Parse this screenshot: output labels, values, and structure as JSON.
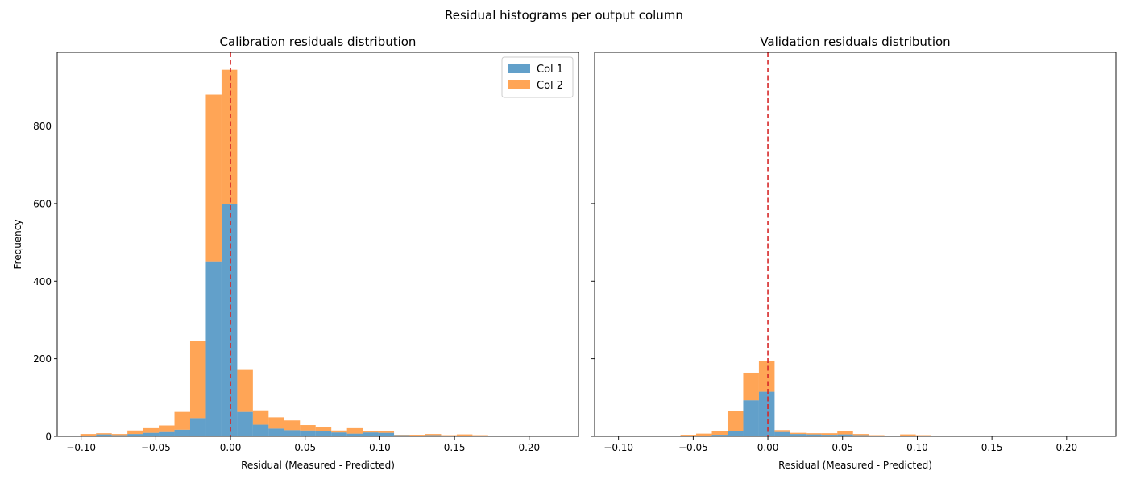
{
  "figure": {
    "suptitle": "Residual histograms per output column",
    "colors": {
      "Col 1": "#1f77b4",
      "Col 2": "#ff7f0e",
      "zero_line": "#d62728",
      "frame": "#000000"
    }
  },
  "chart_data": [
    {
      "type": "bar",
      "subtype": "stacked-histogram",
      "title": "Calibration residuals distribution",
      "xlabel": "Residual (Measured - Predicted)",
      "ylabel": "Frequency",
      "xlim": [
        -0.116,
        0.233
      ],
      "ylim": [
        0,
        990
      ],
      "xticks": [
        -0.1,
        -0.05,
        0.0,
        0.05,
        0.1,
        0.15,
        0.2
      ],
      "xtick_labels": [
        "−0.10",
        "−0.05",
        "0.00",
        "0.05",
        "0.10",
        "0.15",
        "0.20"
      ],
      "yticks": [
        0,
        200,
        400,
        600,
        800
      ],
      "ytick_labels": [
        "0",
        "200",
        "400",
        "600",
        "800"
      ],
      "bin_edges": [
        -0.1005,
        -0.09,
        -0.0795,
        -0.069,
        -0.0585,
        -0.048,
        -0.0375,
        -0.027,
        -0.0165,
        -0.006,
        0.0045,
        0.015,
        0.0255,
        0.036,
        0.0465,
        0.057,
        0.0675,
        0.078,
        0.0885,
        0.099,
        0.1095,
        0.12,
        0.1305,
        0.141,
        0.1515,
        0.162,
        0.1725,
        0.183,
        0.1935,
        0.204,
        0.2145,
        0.225
      ],
      "series": [
        {
          "name": "Col 1",
          "values": [
            2,
            5,
            3,
            6,
            9,
            11,
            17,
            47,
            451,
            598,
            63,
            30,
            20,
            16,
            15,
            13,
            10,
            7,
            10,
            9,
            3,
            1,
            3,
            2,
            1,
            1,
            0,
            1,
            0,
            2,
            1
          ]
        },
        {
          "name": "Col 2",
          "values": [
            4,
            3,
            3,
            9,
            12,
            17,
            46,
            198,
            430,
            347,
            108,
            37,
            29,
            25,
            14,
            11,
            5,
            14,
            4,
            5,
            1,
            3,
            3,
            1,
            4,
            2,
            1,
            1,
            1,
            0,
            0
          ]
        }
      ],
      "vline": {
        "x": 0,
        "style": "dashed"
      },
      "legend": {
        "position": "top-right",
        "entries": [
          "Col 1",
          "Col 2"
        ]
      },
      "grid": false
    },
    {
      "type": "bar",
      "subtype": "stacked-histogram",
      "title": "Validation residuals distribution",
      "xlabel": "Residual (Measured - Predicted)",
      "ylabel": "",
      "xlim": [
        -0.116,
        0.233
      ],
      "ylim": [
        0,
        990
      ],
      "xticks": [
        -0.1,
        -0.05,
        0.0,
        0.05,
        0.1,
        0.15,
        0.2
      ],
      "xtick_labels": [
        "−0.10",
        "−0.05",
        "0.00",
        "0.05",
        "0.10",
        "0.15",
        "0.20"
      ],
      "yticks": [
        0,
        200,
        400,
        600,
        800
      ],
      "ytick_labels": [],
      "bin_edges": [
        -0.1005,
        -0.09,
        -0.0795,
        -0.069,
        -0.0585,
        -0.048,
        -0.0375,
        -0.027,
        -0.0165,
        -0.006,
        0.0045,
        0.015,
        0.0255,
        0.036,
        0.0465,
        0.057,
        0.0675,
        0.078,
        0.0885,
        0.099,
        0.1095,
        0.12,
        0.1305,
        0.141,
        0.1515,
        0.162,
        0.1725,
        0.183,
        0.1935,
        0.204,
        0.2145,
        0.225
      ],
      "series": [
        {
          "name": "Col 1",
          "values": [
            1,
            1,
            0,
            1,
            1,
            2,
            4,
            13,
            93,
            115,
            11,
            6,
            5,
            4,
            5,
            3,
            2,
            1,
            2,
            2,
            1,
            1,
            0,
            1,
            0,
            0,
            0,
            0,
            0,
            1,
            1
          ]
        },
        {
          "name": "Col 2",
          "values": [
            0,
            1,
            1,
            0,
            3,
            5,
            10,
            52,
            71,
            79,
            5,
            3,
            3,
            4,
            9,
            3,
            1,
            1,
            3,
            1,
            1,
            1,
            1,
            1,
            0,
            2,
            1,
            1,
            1,
            0,
            0
          ]
        }
      ],
      "vline": {
        "x": 0,
        "style": "dashed"
      },
      "grid": false
    }
  ]
}
